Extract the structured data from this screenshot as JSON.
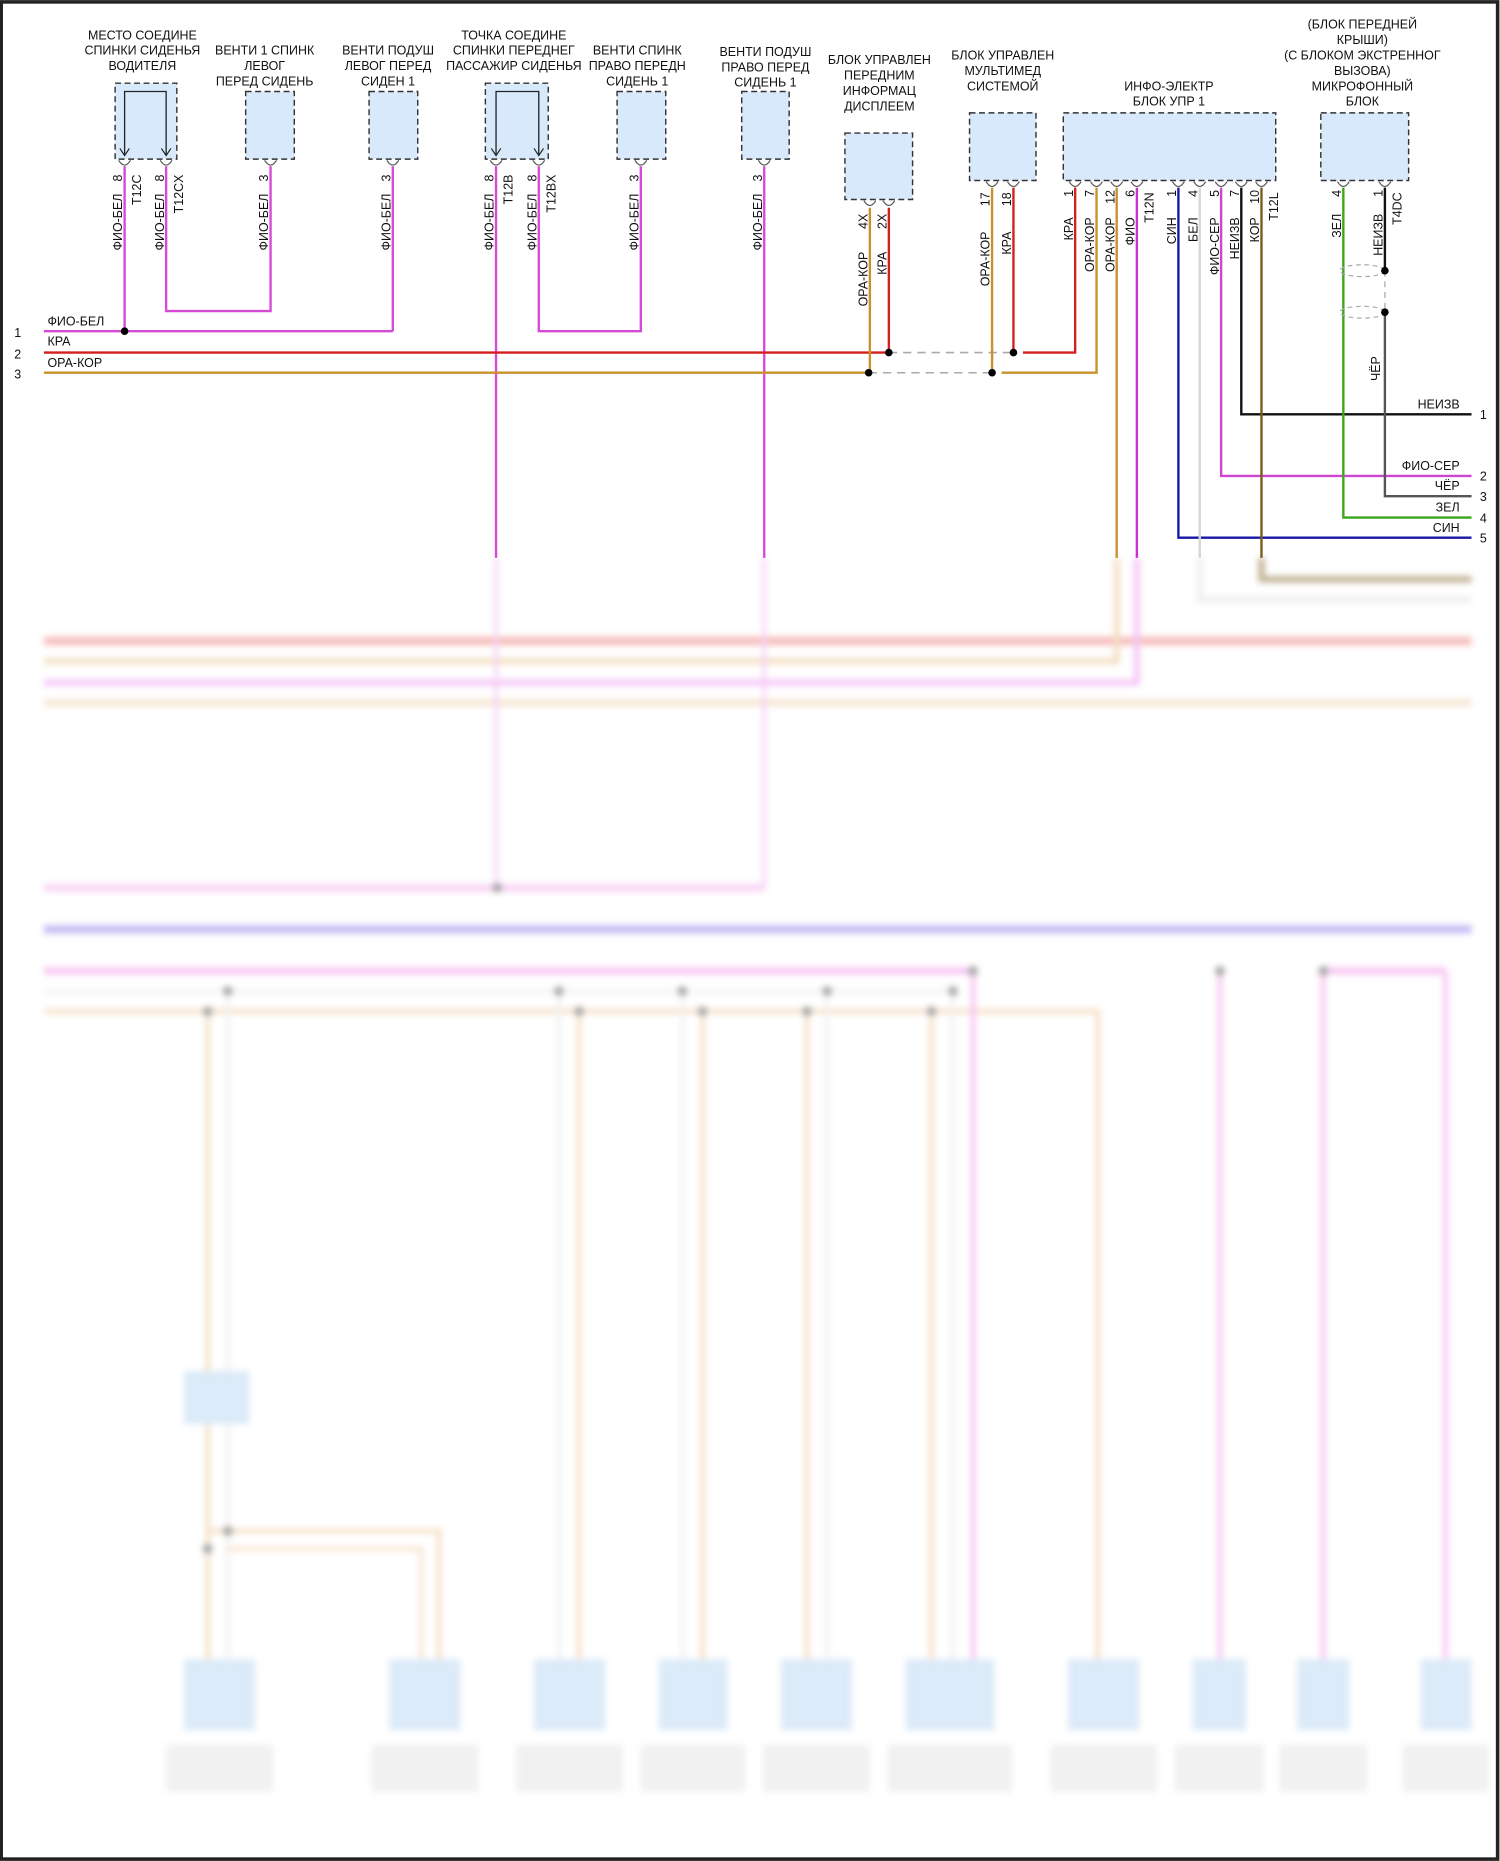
{
  "colors": {
    "ФИО-БЕЛ": "#d64ad6",
    "КРА": "#d41f1f",
    "ОРА-КОР": "#c9912c",
    "ФИО": "#cc2fd6",
    "СИН": "#1717a6",
    "БЕЛ": "#d6d6d6",
    "ФИО-СЕР": "#cf45d2",
    "НЕИЗВ": "#111111",
    "КОР": "#7b5b1c",
    "ЗЕЛ": "#3ca51b",
    "ЧЁР": "#555555",
    "module_fill": "#d8e9fb",
    "violet_bus": "#8c7be8"
  },
  "components": [
    {
      "title": [
        "МЕСТО СОЕДИНЕ",
        "СПИНКИ СИДЕНЬЯ",
        "ВОДИТЕЛЯ"
      ],
      "pins": [
        {
          "num": "8",
          "wire": "ФИО-БЕЛ",
          "connector": "T12C"
        },
        {
          "num": "8",
          "wire": "ФИО-БЕЛ",
          "connector": "T12CX"
        }
      ]
    },
    {
      "title": [
        "ВЕНТИ 1 СПИНК",
        "ЛЕВОГ",
        "ПЕРЕД СИДЕНЬ"
      ],
      "pins": [
        {
          "num": "3",
          "wire": "ФИО-БЕЛ"
        }
      ]
    },
    {
      "title": [
        "ВЕНТИ ПОДУШ",
        "ЛЕВОГ ПЕРЕД",
        "СИДЕН 1"
      ],
      "pins": [
        {
          "num": "3",
          "wire": "ФИО-БЕЛ"
        }
      ]
    },
    {
      "title": [
        "ТОЧКА СОЕДИНЕ",
        "СПИНКИ ПЕРЕДНЕГ",
        "ПАССАЖИР СИДЕНЬЯ"
      ],
      "pins": [
        {
          "num": "8",
          "wire": "ФИО-БЕЛ",
          "connector": "T12B"
        },
        {
          "num": "8",
          "wire": "ФИО-БЕЛ",
          "connector": "T12BX"
        }
      ]
    },
    {
      "title": [
        "ВЕНТИ СПИНК",
        "ПРАВО ПЕРЕДН",
        "СИДЕНЬ 1"
      ],
      "pins": [
        {
          "num": "3",
          "wire": "ФИО-БЕЛ"
        }
      ]
    },
    {
      "title": [
        "ВЕНТИ ПОДУШ",
        "ПРАВО ПЕРЕД",
        "СИДЕНЬ 1"
      ],
      "pins": [
        {
          "num": "3",
          "wire": "ФИО-БЕЛ"
        }
      ]
    },
    {
      "title": [
        "БЛОК УПРАВЛЕН",
        "ПЕРЕДНИМ",
        "ИНФОРМАЦ",
        "ДИСПЛЕЕМ"
      ],
      "pins": [
        {
          "num": "4X",
          "wire": "ОРА-КОР"
        },
        {
          "num": "2X",
          "wire": "КРА"
        }
      ]
    },
    {
      "title": [
        "БЛОК УПРАВЛЕН",
        "МУЛЬТИМЕД",
        "СИСТЕМОЙ"
      ],
      "pins": [
        {
          "num": "17",
          "wire": "ОРА-КОР"
        },
        {
          "num": "18",
          "wire": "КРА"
        }
      ]
    },
    {
      "title": [
        "ИНФО-ЭЛЕКТР",
        "БЛОК УПР 1"
      ],
      "pins": [
        {
          "num": "1",
          "wire": "КРА"
        },
        {
          "num": "7",
          "wire": "ОРА-КОР"
        },
        {
          "num": "12",
          "wire": "ОРА-КОР"
        },
        {
          "num": "6",
          "wire": "ФИО",
          "connector": "T12N"
        },
        {
          "num": "1",
          "wire": "СИН"
        },
        {
          "num": "4",
          "wire": "БЕЛ"
        },
        {
          "num": "5",
          "wire": "ФИО-СЕР"
        },
        {
          "num": "7",
          "wire": "НЕИЗВ"
        },
        {
          "num": "10",
          "wire": "КОР",
          "connector": "T12L"
        }
      ]
    },
    {
      "title": [
        "(БЛОК ПЕРЕДНЕЙ",
        "КРЫШИ)",
        "(С БЛОКОМ ЭКСТРЕННОГ",
        "ВЫЗОВА)",
        "МИКРОФОННЫЙ",
        "БЛОК"
      ],
      "pins": [
        {
          "num": "4",
          "wire": "ЗЕЛ"
        },
        {
          "num": "1",
          "wire": "НЕИЗВ",
          "connector": "T4DC"
        }
      ]
    }
  ],
  "shield_wire": "ЧЁР",
  "left_terminals": [
    {
      "num": "1",
      "wire": "ФИО-БЕЛ"
    },
    {
      "num": "2",
      "wire": "КРА"
    },
    {
      "num": "3",
      "wire": "ОРА-КОР"
    }
  ],
  "right_terminals": [
    {
      "num": "1",
      "wire": "НЕИЗВ"
    },
    {
      "num": "2",
      "wire": "ФИО-СЕР"
    },
    {
      "num": "3",
      "wire": "ЧЁР"
    },
    {
      "num": "4",
      "wire": "ЗЕЛ"
    },
    {
      "num": "5",
      "wire": "СИН"
    }
  ]
}
